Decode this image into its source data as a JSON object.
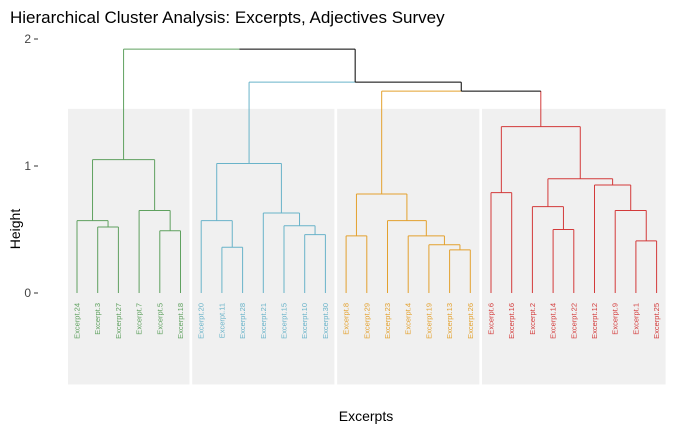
{
  "chart_data": {
    "type": "dendrogram",
    "title": "Hierarchical Cluster Analysis: Excerpts, Adjectives Survey",
    "xlabel": "Excerpts",
    "ylabel": "Height",
    "ylim": [
      -0.8,
      2.05
    ],
    "yticks": [
      {
        "value": 0,
        "label": "0"
      },
      {
        "value": 1,
        "label": "1"
      },
      {
        "value": 2,
        "label": "2"
      }
    ],
    "clusters": [
      {
        "color": "#5fa15f",
        "leaves": [
          "Excerpt.24",
          "Excerpt.3",
          "Excerpt.27",
          "Excerpt.7",
          "Excerpt.5",
          "Excerpt.18"
        ]
      },
      {
        "color": "#69b3c9",
        "leaves": [
          "Excerpt.20",
          "Excerpt.11",
          "Excerpt.28",
          "Excerpt.21",
          "Excerpt.15",
          "Excerpt.10",
          "Excerpt.30"
        ]
      },
      {
        "color": "#e3a12e",
        "leaves": [
          "Excerpt.8",
          "Excerpt.29",
          "Excerpt.23",
          "Excerpt.4",
          "Excerpt.19",
          "Excerpt.13",
          "Excerpt.26"
        ]
      },
      {
        "color": "#d33a3a",
        "leaves": [
          "Excerpt.6",
          "Excerpt.16",
          "Excerpt.2",
          "Excerpt.14",
          "Excerpt.22",
          "Excerpt.12",
          "Excerpt.9",
          "Excerpt.1",
          "Excerpt.25"
        ]
      }
    ],
    "merges": [
      {
        "id": "G1",
        "left": "Excerpt.3",
        "right": "Excerpt.27",
        "height": 0.52
      },
      {
        "id": "G2",
        "left": "Excerpt.24",
        "right": "G1",
        "height": 0.57
      },
      {
        "id": "G3",
        "left": "Excerpt.5",
        "right": "Excerpt.18",
        "height": 0.49
      },
      {
        "id": "G4",
        "left": "Excerpt.7",
        "right": "G3",
        "height": 0.65
      },
      {
        "id": "G5",
        "left": "G2",
        "right": "G4",
        "height": 1.05
      },
      {
        "id": "B1",
        "left": "Excerpt.11",
        "right": "Excerpt.28",
        "height": 0.36
      },
      {
        "id": "B2",
        "left": "Excerpt.20",
        "right": "B1",
        "height": 0.57
      },
      {
        "id": "B3",
        "left": "Excerpt.10",
        "right": "Excerpt.30",
        "height": 0.46
      },
      {
        "id": "B4",
        "left": "Excerpt.15",
        "right": "B3",
        "height": 0.53
      },
      {
        "id": "B5",
        "left": "Excerpt.21",
        "right": "B4",
        "height": 0.63
      },
      {
        "id": "B6",
        "left": "B2",
        "right": "B5",
        "height": 1.02
      },
      {
        "id": "O1",
        "left": "Excerpt.8",
        "right": "Excerpt.29",
        "height": 0.45
      },
      {
        "id": "O2",
        "left": "Excerpt.13",
        "right": "Excerpt.26",
        "height": 0.34
      },
      {
        "id": "O3",
        "left": "Excerpt.19",
        "right": "O2",
        "height": 0.38
      },
      {
        "id": "O4",
        "left": "Excerpt.4",
        "right": "O3",
        "height": 0.45
      },
      {
        "id": "O5",
        "left": "Excerpt.23",
        "right": "O4",
        "height": 0.57
      },
      {
        "id": "O6",
        "left": "O1",
        "right": "O5",
        "height": 0.78
      },
      {
        "id": "R1",
        "left": "Excerpt.6",
        "right": "Excerpt.16",
        "height": 0.79
      },
      {
        "id": "R2",
        "left": "Excerpt.14",
        "right": "Excerpt.22",
        "height": 0.5
      },
      {
        "id": "R3",
        "left": "Excerpt.2",
        "right": "R2",
        "height": 0.68
      },
      {
        "id": "R4",
        "left": "Excerpt.1",
        "right": "Excerpt.25",
        "height": 0.41
      },
      {
        "id": "R5",
        "left": "Excerpt.9",
        "right": "R4",
        "height": 0.65
      },
      {
        "id": "R6",
        "left": "Excerpt.12",
        "right": "R5",
        "height": 0.85
      },
      {
        "id": "R7",
        "left": "R3",
        "right": "R6",
        "height": 0.9
      },
      {
        "id": "R8",
        "left": "R1",
        "right": "R7",
        "height": 1.31
      },
      {
        "id": "T1",
        "left": "O6",
        "right": "R8",
        "height": 1.59
      },
      {
        "id": "T2",
        "left": "B6",
        "right": "T1",
        "height": 1.66
      },
      {
        "id": "T3",
        "left": "G5",
        "right": "T2",
        "height": 1.92
      }
    ],
    "root_color": "#000000",
    "panel_color": "#f0f0f0"
  }
}
